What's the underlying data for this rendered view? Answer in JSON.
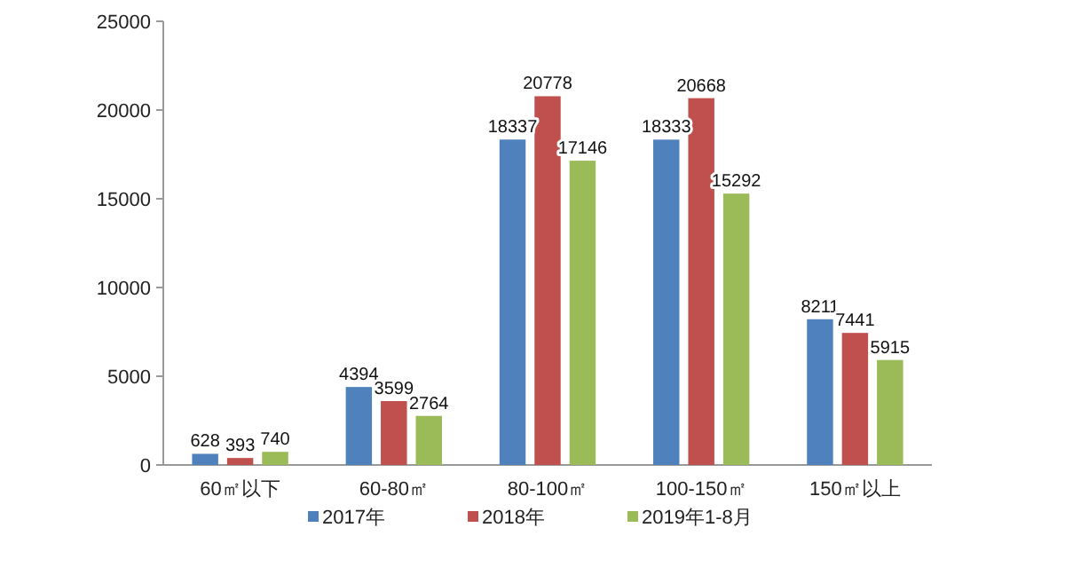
{
  "chart_data": {
    "type": "bar",
    "categories": [
      "60㎡以下",
      "60-80㎡",
      "80-100㎡",
      "100-150㎡",
      "150㎡以上"
    ],
    "series": [
      {
        "name": "2017年",
        "color": "#4f81bd",
        "values": [
          628,
          4394,
          18337,
          18333,
          8211
        ]
      },
      {
        "name": "2018年",
        "color": "#c0504d",
        "values": [
          393,
          3599,
          20778,
          20668,
          7441
        ]
      },
      {
        "name": "2019年1-8月",
        "color": "#9bbb59",
        "values": [
          740,
          2764,
          17146,
          15292,
          5915
        ]
      }
    ],
    "ylim": [
      0,
      25000
    ],
    "yticks": [
      0,
      5000,
      10000,
      15000,
      20000,
      25000
    ],
    "data_labels": true,
    "legend": "bottom"
  }
}
